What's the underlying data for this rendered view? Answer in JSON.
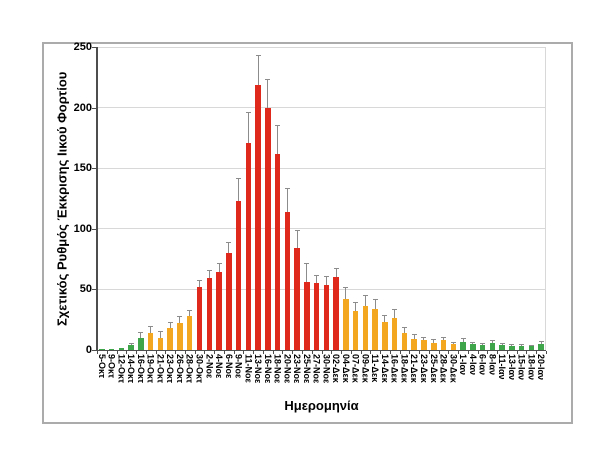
{
  "chart_data": {
    "type": "bar",
    "title": "",
    "xlabel": "Ημερομηνία",
    "ylabel": "Σχετικός Ρυθμός Έκκρισης Ιικού Φορτίου",
    "ylim": [
      0,
      250
    ],
    "yticks": [
      0,
      50,
      100,
      150,
      200,
      250
    ],
    "grid": "horizontal-gridlines-on",
    "legend": "none",
    "categories": [
      "5-Οκτ",
      "9-Οκτ",
      "12-Οκτ",
      "14-Οκτ",
      "16-Οκτ",
      "19-Οκτ",
      "21-Οκτ",
      "23-Οκτ",
      "26-Οκτ",
      "28-Οκτ",
      "30-Οκτ",
      "2-Νοε",
      "4-Νοε",
      "6-Νοε",
      "9-Νοε",
      "11-Νοε",
      "13-Νοε",
      "16-Νοε",
      "18-Νοε",
      "20-Νοε",
      "23-Νοε",
      "25-Νοε",
      "27-Νοε",
      "30-Νοε",
      "02-Δεκ",
      "04-Δεκ",
      "07-Δεκ",
      "09-Δεκ",
      "11-Δεκ",
      "14-Δεκ",
      "16-Δεκ",
      "18-Δεκ",
      "21-Δεκ",
      "23-Δεκ",
      "25-Δεκ",
      "28-Δεκ",
      "30-Δεκ",
      "1-Ιαν",
      "4-Ιαν",
      "6-Ιαν",
      "8-Ιαν",
      "11-Ιαν",
      "13-Ιαν",
      "15-Ιαν",
      "18-Ιαν",
      "20-Ιαν"
    ],
    "values": [
      1,
      1,
      1.5,
      4,
      10,
      14,
      10,
      18,
      22,
      28,
      52,
      59,
      64,
      80,
      123,
      171,
      219,
      200,
      162,
      114,
      84,
      56,
      55,
      54,
      60,
      42,
      32,
      36,
      34,
      23,
      26,
      14,
      9,
      8,
      6,
      8,
      5,
      7,
      5,
      4,
      6,
      4,
      3.5,
      3.5,
      3,
      5
    ],
    "error_whisker_top": [
      null,
      null,
      null,
      6,
      15,
      20,
      16,
      23,
      28,
      33,
      58,
      66,
      72,
      89,
      142,
      196,
      243,
      224,
      186,
      134,
      99,
      72,
      62,
      61,
      68,
      52,
      40,
      45,
      42,
      29,
      34,
      19,
      13,
      11,
      9,
      11,
      7,
      10,
      7,
      6,
      8,
      6,
      5,
      5,
      4.5,
      7.5
    ],
    "bar_color_keys": [
      "green",
      "green",
      "green",
      "green",
      "green",
      "orange",
      "orange",
      "orange",
      "orange",
      "orange",
      "red",
      "red",
      "red",
      "red",
      "red",
      "red",
      "red",
      "red",
      "red",
      "red",
      "red",
      "red",
      "red",
      "red",
      "red",
      "orange",
      "orange",
      "orange",
      "orange",
      "orange",
      "orange",
      "orange",
      "orange",
      "orange",
      "orange",
      "orange",
      "orange",
      "green",
      "green",
      "green",
      "green",
      "green",
      "green",
      "green",
      "green",
      "green"
    ],
    "palette": {
      "green": "#3fa54a",
      "orange": "#f3a61f",
      "red": "#e0291d"
    },
    "error_bar_color": "#8c8c8c",
    "gridline_color": "#d8d8d8",
    "axis_color": "#4d4d4d",
    "frame_border_color": "#ababab"
  }
}
